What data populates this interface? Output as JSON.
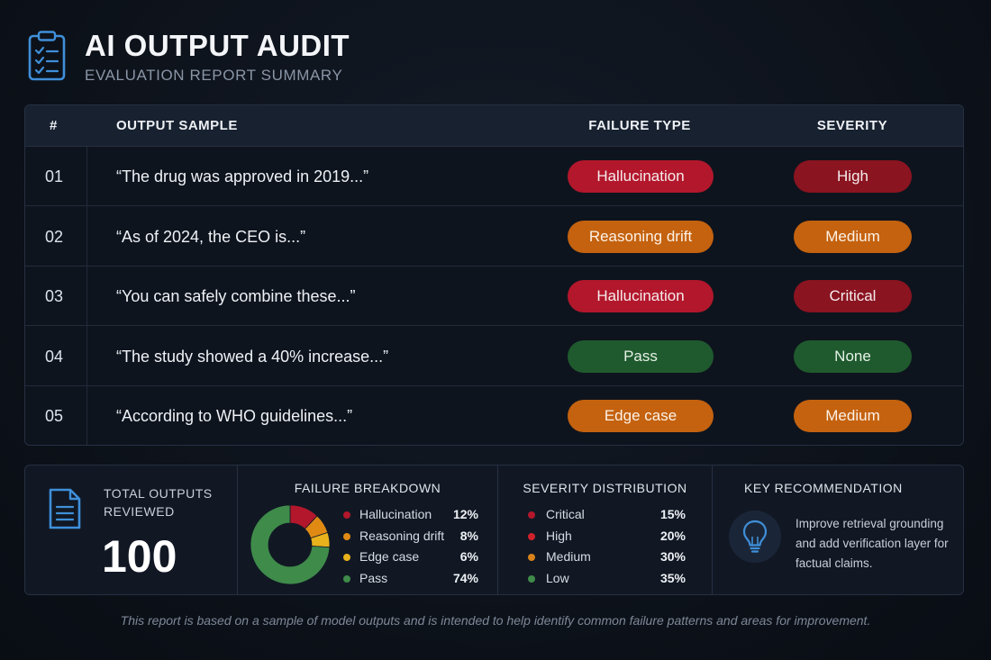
{
  "header": {
    "title": "AI OUTPUT AUDIT",
    "subtitle": "EVALUATION REPORT SUMMARY"
  },
  "table": {
    "columns": {
      "num": "#",
      "sample": "OUTPUT SAMPLE",
      "type": "FAILURE TYPE",
      "severity": "SEVERITY"
    },
    "rows": [
      {
        "num": "01",
        "sample": "“The drug was approved in 2019...”",
        "type": "Hallucination",
        "severity": "High"
      },
      {
        "num": "02",
        "sample": "“As of 2024, the CEO is...”",
        "type": "Reasoning drift",
        "severity": "Medium"
      },
      {
        "num": "03",
        "sample": "“You can safely combine these...”",
        "type": "Hallucination",
        "severity": "Critical"
      },
      {
        "num": "04",
        "sample": "“The study showed a 40% increase...”",
        "type": "Pass",
        "severity": "None"
      },
      {
        "num": "05",
        "sample": "“According to WHO guidelines...”",
        "type": "Edge case",
        "severity": "Medium"
      }
    ]
  },
  "colors": {
    "hallucination": "#b3172c",
    "high": "#8a1420",
    "critical": "#8a1420",
    "orange": "#c4620f",
    "pass": "#1f5a2e",
    "accent_blue": "#3f8fd9"
  },
  "summary": {
    "total": {
      "label": "TOTAL OUTPUTS REVIEWED",
      "value": "100",
      "icon": "document-icon"
    },
    "failure_breakdown": {
      "title": "FAILURE BREAKDOWN",
      "items": [
        {
          "label": "Hallucination",
          "value": "12%",
          "color": "#b3172c"
        },
        {
          "label": "Reasoning drift",
          "value": "8%",
          "color": "#e08a14"
        },
        {
          "label": "Edge case",
          "value": "6%",
          "color": "#e8b21c"
        },
        {
          "label": "Pass",
          "value": "74%",
          "color": "#3f8b4a"
        }
      ]
    },
    "severity_distribution": {
      "title": "SEVERITY DISTRIBUTION",
      "items": [
        {
          "label": "Critical",
          "value": "15%",
          "color": "#b3172c"
        },
        {
          "label": "High",
          "value": "20%",
          "color": "#d0222c"
        },
        {
          "label": "Medium",
          "value": "30%",
          "color": "#d9821a"
        },
        {
          "label": "Low",
          "value": "35%",
          "color": "#3f8b4a"
        }
      ]
    },
    "recommendation": {
      "title": "KEY RECOMMENDATION",
      "text": "Improve retrieval grounding and add verification layer for factual claims.",
      "icon": "lightbulb-icon"
    }
  },
  "chart_data": {
    "type": "pie",
    "categories": [
      "Hallucination",
      "Reasoning drift",
      "Edge case",
      "Pass"
    ],
    "values": [
      12,
      8,
      6,
      74
    ],
    "title": "FAILURE BREAKDOWN"
  },
  "footer": "This report is based on a sample of model outputs and is intended to help identify common failure patterns and areas for improvement."
}
